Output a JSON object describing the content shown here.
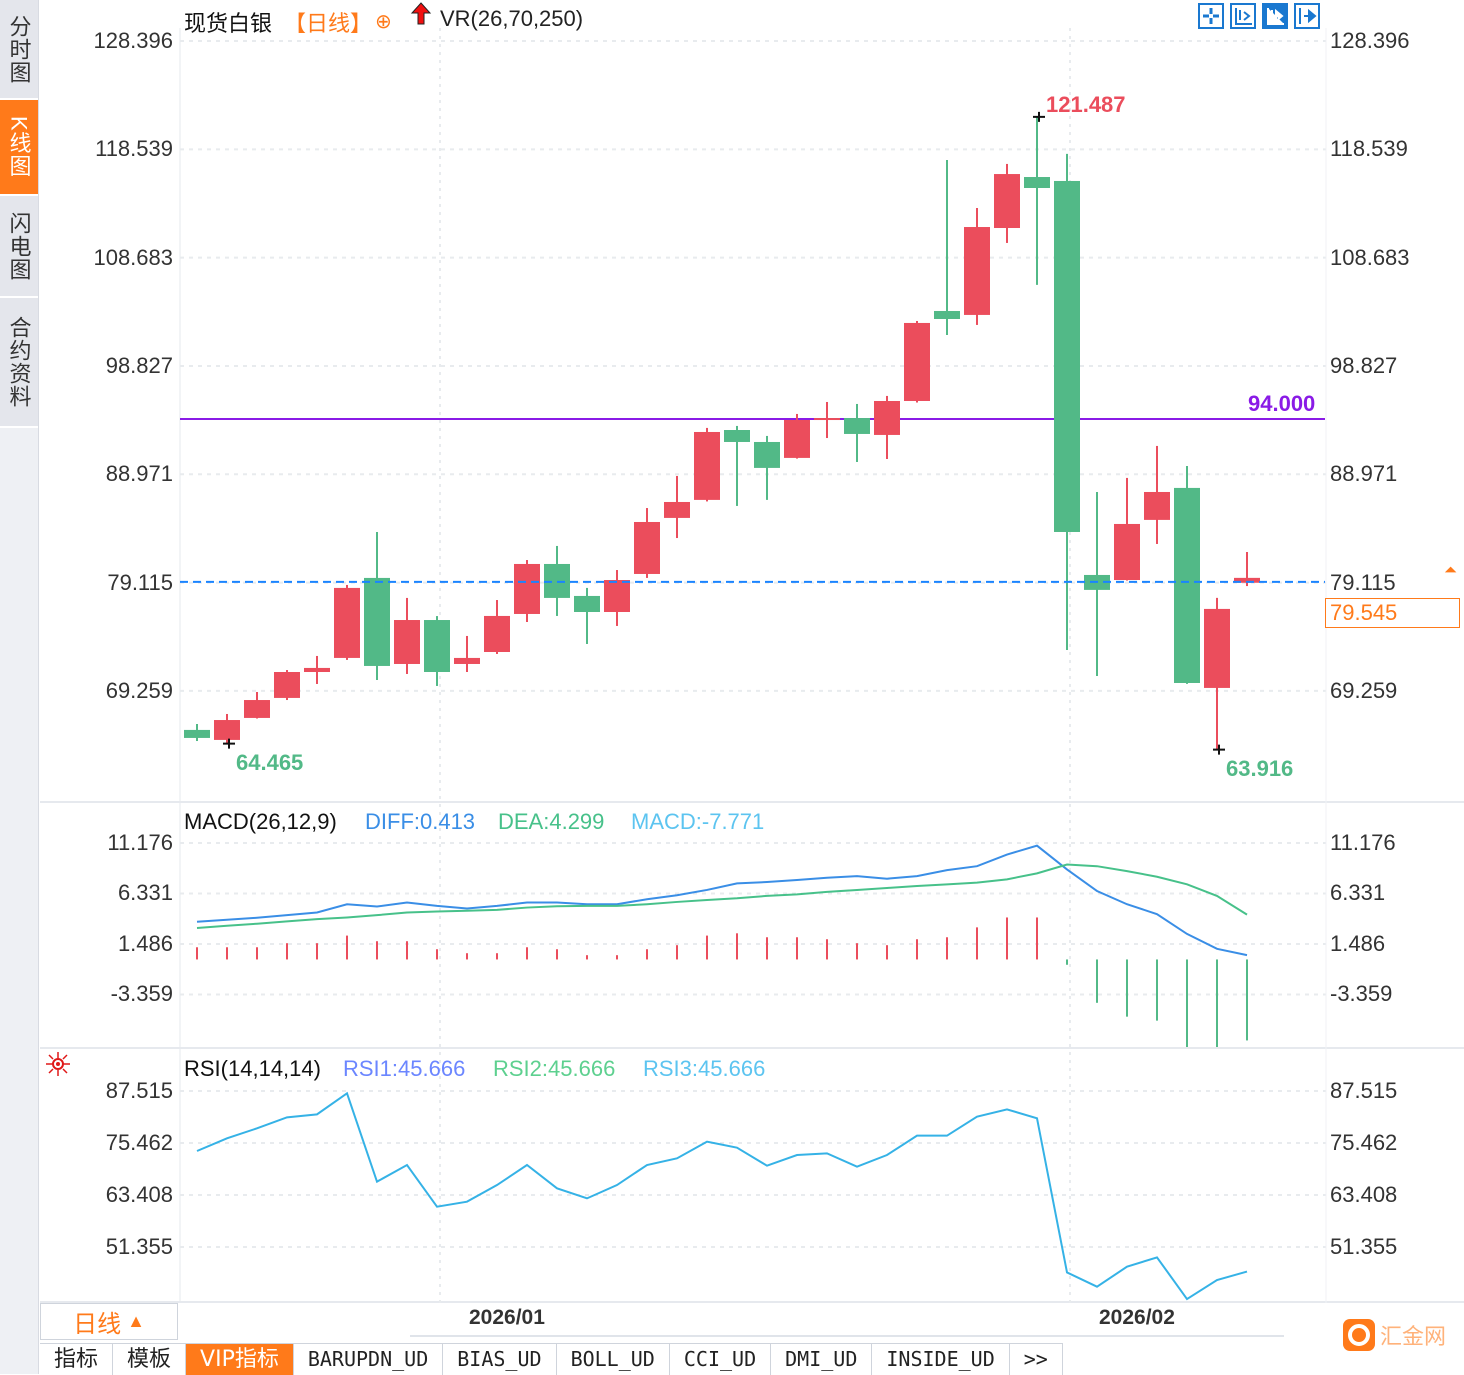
{
  "sidebar": {
    "tabs": [
      {
        "label": "分时图",
        "active": false
      },
      {
        "label": "K线图",
        "active": true
      },
      {
        "label": "闪电图",
        "active": false
      },
      {
        "label": "合约资料",
        "active": false
      }
    ]
  },
  "header": {
    "symbol": "现货白银",
    "period": "【日线】",
    "add_icon": "circle-plus-icon",
    "indicator_icon": "red-up-arrow-icon",
    "indicator": "VR(26,70,250)"
  },
  "toolbar": {
    "icons": [
      "crosshair-icon",
      "zoom-fit-icon",
      "scroll-to-end-icon",
      "move-right-icon"
    ]
  },
  "colors": {
    "up": "#eb4d5c",
    "down": "#52b987",
    "diff": "#3a8ee6",
    "dea": "#47c18a",
    "rsi": "#35b2e6",
    "hline": "#8a1be6",
    "price_line": "#1a84ff",
    "accent": "#ff7a1a"
  },
  "chart_data": [
    {
      "type": "candlestick",
      "panel": "price",
      "y_ticks": [
        "128.396",
        "118.539",
        "108.683",
        "98.827",
        "88.971",
        "79.115",
        "69.259"
      ],
      "ylim": [
        62.5,
        129.5
      ],
      "x_ticks": [
        "2026/01",
        "2026/02"
      ],
      "x_tick_index": [
        9,
        30
      ],
      "grid": true,
      "ohlc": [
        [
          65.71,
          66.25,
          64.7,
          64.98
        ],
        [
          64.8,
          67.16,
          64.465,
          66.61
        ],
        [
          66.8,
          69.16,
          66.75,
          68.43
        ],
        [
          68.62,
          71.16,
          68.43,
          70.98
        ],
        [
          70.98,
          72.44,
          69.89,
          71.35
        ],
        [
          72.26,
          78.9,
          72.08,
          78.63
        ],
        [
          79.54,
          83.72,
          70.25,
          71.53
        ],
        [
          71.71,
          77.72,
          70.8,
          75.71
        ],
        [
          75.71,
          76.07,
          69.71,
          70.98
        ],
        [
          71.71,
          74.26,
          70.98,
          72.26
        ],
        [
          72.8,
          77.53,
          72.62,
          76.08
        ],
        [
          76.26,
          81.17,
          75.53,
          80.81
        ],
        [
          80.81,
          82.45,
          76.08,
          77.72
        ],
        [
          77.9,
          78.63,
          73.53,
          76.44
        ],
        [
          76.44,
          80.26,
          75.17,
          79.35
        ],
        [
          79.9,
          85.9,
          79.54,
          84.63
        ],
        [
          85.0,
          88.82,
          83.17,
          86.45
        ],
        [
          86.64,
          93.19,
          86.5,
          92.82
        ],
        [
          93.0,
          93.37,
          86.09,
          91.91
        ],
        [
          91.91,
          92.46,
          86.64,
          89.55
        ],
        [
          90.46,
          94.46,
          90.4,
          93.91
        ],
        [
          93.91,
          95.55,
          92.27,
          94.09
        ],
        [
          94.09,
          95.37,
          90.09,
          92.64
        ],
        [
          92.55,
          96.1,
          90.36,
          95.64
        ],
        [
          95.64,
          102.92,
          95.5,
          102.74
        ],
        [
          103.83,
          117.57,
          101.65,
          103.1
        ],
        [
          103.47,
          113.2,
          102.56,
          111.47
        ],
        [
          111.38,
          117.21,
          110.02,
          116.29
        ],
        [
          116.02,
          121.487,
          106.2,
          115.02
        ],
        [
          115.66,
          118.12,
          72.98,
          83.72
        ],
        [
          79.81,
          87.36,
          70.62,
          78.45
        ],
        [
          79.35,
          88.64,
          79.3,
          84.45
        ],
        [
          84.82,
          91.55,
          82.63,
          87.36
        ],
        [
          87.73,
          89.73,
          69.9,
          69.98
        ],
        [
          69.53,
          77.72,
          63.916,
          76.72
        ],
        [
          79.1,
          81.9,
          78.8,
          79.545
        ]
      ],
      "max_label": "121.487",
      "min_labels": [
        "64.465",
        "63.916"
      ],
      "horizontal_line": {
        "value": 94.0,
        "label": "94.000"
      },
      "current_price": {
        "value": 79.545,
        "label": "79.545"
      }
    },
    {
      "type": "line",
      "panel": "macd",
      "title": "MACD(26,12,9)",
      "legend": [
        "DIFF:0.413",
        "DEA:4.299",
        "MACD:-7.771"
      ],
      "y_ticks": [
        "11.176",
        "6.331",
        "1.486",
        "-3.359"
      ],
      "series": [
        {
          "name": "DIFF",
          "values": [
            3.62,
            3.81,
            4.0,
            4.25,
            4.51,
            5.3,
            5.08,
            5.46,
            5.14,
            4.89,
            5.14,
            5.46,
            5.46,
            5.3,
            5.3,
            5.78,
            6.16,
            6.67,
            7.3,
            7.43,
            7.62,
            7.84,
            8.0,
            7.75,
            8.0,
            8.57,
            8.95,
            10.07,
            10.92,
            8.64,
            6.57,
            5.3,
            4.35,
            2.45,
            1.02,
            0.413
          ]
        },
        {
          "name": "DEA",
          "values": [
            3.02,
            3.24,
            3.43,
            3.65,
            3.87,
            4.03,
            4.25,
            4.51,
            4.6,
            4.67,
            4.76,
            4.98,
            5.11,
            5.14,
            5.14,
            5.3,
            5.52,
            5.71,
            5.87,
            6.1,
            6.25,
            6.48,
            6.67,
            6.86,
            7.05,
            7.21,
            7.37,
            7.69,
            8.26,
            9.11,
            8.95,
            8.48,
            7.94,
            7.21,
            6.1,
            4.299
          ]
        },
        {
          "name": "MACD",
          "type": "bar",
          "values": [
            1.17,
            1.17,
            1.17,
            1.56,
            1.56,
            2.29,
            1.75,
            1.75,
            0.98,
            0.6,
            0.6,
            1.17,
            0.98,
            0.41,
            0.41,
            0.98,
            1.37,
            2.29,
            2.51,
            2.13,
            2.13,
            1.94,
            1.56,
            1.37,
            1.94,
            2.13,
            3.08,
            4.03,
            4.03,
            -0.51,
            -4.16,
            -5.49,
            -5.87,
            -9.52,
            -10.16,
            -7.771
          ]
        }
      ]
    },
    {
      "type": "line",
      "panel": "rsi",
      "title": "RSI(14,14,14)",
      "legend": [
        "RSI1:45.666",
        "RSI2:45.666",
        "RSI3:45.666"
      ],
      "y_ticks": [
        "87.515",
        "75.462",
        "63.408",
        "51.355"
      ],
      "series": [
        {
          "name": "RSI1",
          "values": [
            73.61,
            76.54,
            78.86,
            81.41,
            82.1,
            86.97,
            66.5,
            70.36,
            60.7,
            61.86,
            65.72,
            70.36,
            64.95,
            62.63,
            65.72,
            70.36,
            71.9,
            75.77,
            74.38,
            70.2,
            72.68,
            73.06,
            69.97,
            72.68,
            77.16,
            77.16,
            81.56,
            83.26,
            81.18,
            45.47,
            42.15,
            46.79,
            48.95,
            39.29,
            43.7,
            45.666
          ]
        }
      ]
    }
  ],
  "footer": {
    "period_label": "日线",
    "period_arrow": "▲",
    "tabs": [
      {
        "label": "指标",
        "active": false
      },
      {
        "label": "模板",
        "active": false
      },
      {
        "label": "VIP指标",
        "active": true
      },
      {
        "label": "BARUPDN_UD",
        "active": false
      },
      {
        "label": "BIAS_UD",
        "active": false
      },
      {
        "label": "BOLL_UD",
        "active": false
      },
      {
        "label": "CCI_UD",
        "active": false
      },
      {
        "label": "DMI_UD",
        "active": false
      },
      {
        "label": "INSIDE_UD",
        "active": false
      },
      {
        "label": ">>",
        "active": false
      }
    ],
    "logo_text": "汇金网"
  },
  "settings_icon": "sun-gear-icon"
}
